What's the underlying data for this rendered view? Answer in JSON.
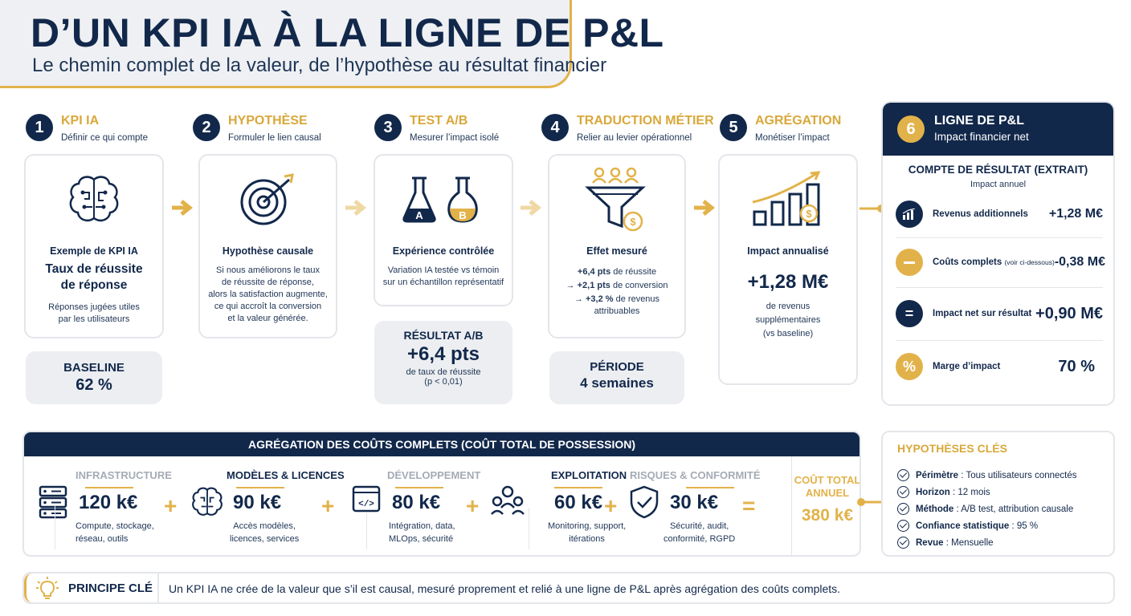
{
  "header": {
    "title": "D’UN KPI IA À LA LIGNE DE P&L",
    "subtitle": "Le chemin complet de la valeur, de l’hypothèse au résultat financier"
  },
  "steps": [
    {
      "num": "1",
      "title": "KPI IA",
      "sub": "Définir ce qui compte",
      "card_label": "Exemple de KPI IA",
      "card_big1": "Taux de réussite",
      "card_big2": "de réponse",
      "card_desc1": "Réponses jugées utiles",
      "card_desc2": "par les utilisateurs",
      "box_label": "BASELINE",
      "box_value": "62 %"
    },
    {
      "num": "2",
      "title": "HYPOTHÈSE",
      "sub": "Formuler le lien causal",
      "card_label": "Hypothèse causale",
      "card_desc": [
        "Si nous améliorons le taux",
        "de réussite de réponse,",
        "alors la satisfaction augmente,",
        "ce qui accroît la conversion",
        "et la valeur générée."
      ]
    },
    {
      "num": "3",
      "title": "TEST A/B",
      "sub": "Mesurer l’impact isolé",
      "card_label": "Expérience contrôlée",
      "card_desc1": "Variation IA testée vs témoin",
      "card_desc2": "sur un échantillon représentatif",
      "flask_a": "A",
      "flask_b": "B",
      "box_label": "RÉSULTAT A/B",
      "box_value": "+6,4 pts",
      "box_desc1": "de taux de réussite",
      "box_desc2": "(p < 0,01)"
    },
    {
      "num": "4",
      "title": "TRADUCTION MÉTIER",
      "sub": "Relier au levier opérationnel",
      "card_label": "Effet mesuré",
      "effects": [
        {
          "prefix": "",
          "value": "+6,4 pts",
          "text": " de réussite"
        },
        {
          "prefix": "→ ",
          "value": "+2,1 pts",
          "text": " de conversion"
        },
        {
          "prefix": "→ ",
          "value": "+3,2 %",
          "text": " de revenus"
        }
      ],
      "effect_last": "attribuables",
      "coin": "$",
      "box_label": "PÉRIODE",
      "box_value": "4 semaines"
    },
    {
      "num": "5",
      "title": "AGRÉGATION",
      "sub": "Monétiser l’impact",
      "card_label": "Impact annualisé",
      "card_big": "+1,28 M€",
      "card_desc": [
        "de revenus",
        "supplémentaires",
        "(vs baseline)"
      ],
      "coin": "$"
    }
  ],
  "pnl": {
    "num": "6",
    "title": "LIGNE DE P&L",
    "sub": "Impact financier net",
    "section": "COMPTE DE RÉSULTAT (EXTRAIT)",
    "section_sub": "Impact annuel",
    "rows": [
      {
        "label": "Revenus additionnels",
        "note": "",
        "value": "+1,28 M€",
        "symbol": ""
      },
      {
        "label": "Coûts complets ",
        "note": "(voir ci-dessous)",
        "value": "-0,38 M€",
        "symbol": ""
      },
      {
        "label": "Impact net sur résultat",
        "note": "",
        "value": "+0,90 M€",
        "symbol": "="
      },
      {
        "label": "Marge d’impact",
        "note": "",
        "value": "70 %",
        "symbol": "%"
      }
    ]
  },
  "costs": {
    "title": "AGRÉGATION DES COÛTS COMPLETS (COÛT TOTAL DE POSSESSION)",
    "items": [
      {
        "title": "INFRASTRUCTURE",
        "value": "120 k€",
        "desc1": "Compute, stockage,",
        "desc2": "réseau, outils"
      },
      {
        "title": "MODÈLES & LICENCES",
        "value": "90 k€",
        "desc1": "Accès modèles,",
        "desc2": "licences, services"
      },
      {
        "title": "DÉVELOPPEMENT",
        "value": "80 k€",
        "desc1": "Intégration, data,",
        "desc2": "MLOps, sécurité",
        "code": "</>"
      },
      {
        "title": "EXPLOITATION",
        "value": "60 k€",
        "desc1": "Monitoring, support,",
        "desc2": "itérations"
      },
      {
        "title": "RISQUES & CONFORMITÉ",
        "value": "30 k€",
        "desc1": "Sécurité, audit,",
        "desc2": "conformité, RGPD"
      }
    ],
    "plus": "+",
    "equals": "=",
    "total_label1": "COÛT TOTAL",
    "total_label2": "ANNUEL",
    "total_value": "380 k€"
  },
  "hypotheses": {
    "title": "HYPOTHÈSES CLÉS",
    "items": [
      {
        "key": "Périmètre",
        "value": " : Tous utilisateurs connectés"
      },
      {
        "key": "Horizon",
        "value": " : 12 mois"
      },
      {
        "key": "Méthode",
        "value": " : A/B test, attribution causale"
      },
      {
        "key": "Confiance statistique",
        "value": " : 95 %"
      },
      {
        "key": "Revue",
        "value": " : Mensuelle"
      }
    ]
  },
  "principle": {
    "label": "PRINCIPE CLÉ",
    "text": "Un KPI IA ne crée de la valeur que s’il est causal, mesuré proprement et relié à une ligne de P&L après agrégation des coûts complets."
  },
  "colors": {
    "navy": "#12284b",
    "gold": "#e2b24a",
    "grey": "#eceef1"
  }
}
